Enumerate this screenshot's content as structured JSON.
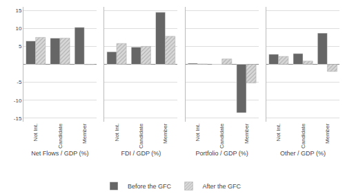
{
  "chart_data": [
    {
      "type": "bar",
      "xlabel": "Net Flows / GDP (%)",
      "categories": [
        "Not Int.",
        "Candidate",
        "Member"
      ],
      "series": [
        {
          "name": "Before the GFC",
          "color": "#666666",
          "values": [
            6.5,
            7.3,
            10.3
          ]
        },
        {
          "name": "After the GFC",
          "color": "#d8d8d8",
          "values": [
            7.5,
            7.3,
            -0.1
          ]
        }
      ],
      "ylim": [
        -16,
        16
      ],
      "yticks": [
        -15,
        -10,
        -5,
        5,
        10,
        15
      ],
      "grid": true,
      "legend": "bottom"
    },
    {
      "type": "bar",
      "xlabel": "FDI / GDP (%)",
      "categories": [
        "Not Int.",
        "Candidate",
        "Member"
      ],
      "series": [
        {
          "name": "Before the GFC",
          "color": "#666666",
          "values": [
            3.5,
            4.8,
            14.5
          ]
        },
        {
          "name": "After the GFC",
          "color": "#d8d8d8",
          "values": [
            5.8,
            5.0,
            7.8
          ]
        }
      ],
      "ylim": [
        -16,
        16
      ],
      "yticks": [
        -15,
        -10,
        -5,
        5,
        10,
        15
      ],
      "grid": true,
      "tick_labels": "x"
    },
    {
      "type": "bar",
      "xlabel": "Portfolio / GDP (%)",
      "categories": [
        "Not Int.",
        "Candidate",
        "Member"
      ],
      "series": [
        {
          "name": "Before the GFC",
          "color": "#666666",
          "values": [
            0.3,
            0.1,
            -13.5
          ]
        },
        {
          "name": "After the GFC",
          "color": "#d8d8d8",
          "values": [
            0.1,
            1.5,
            -5.2
          ]
        }
      ],
      "ylim": [
        -16,
        16
      ],
      "yticks": [
        -15,
        -10,
        -5,
        5,
        10,
        15
      ],
      "grid": true,
      "tick_labels": "x"
    },
    {
      "type": "bar",
      "xlabel": "Other / GDP (%)",
      "categories": [
        "Not Int.",
        "Candidate",
        "Member"
      ],
      "series": [
        {
          "name": "Before the GFC",
          "color": "#666666",
          "values": [
            2.8,
            3.0,
            8.7
          ]
        },
        {
          "name": "After the GFC",
          "color": "#d8d8d8",
          "values": [
            2.2,
            0.9,
            -2.0
          ]
        }
      ],
      "ylim": [
        -16,
        16
      ],
      "yticks": [
        -15,
        -10,
        -5,
        5,
        10,
        15
      ],
      "grid": true,
      "tick_labels": "x"
    }
  ]
}
